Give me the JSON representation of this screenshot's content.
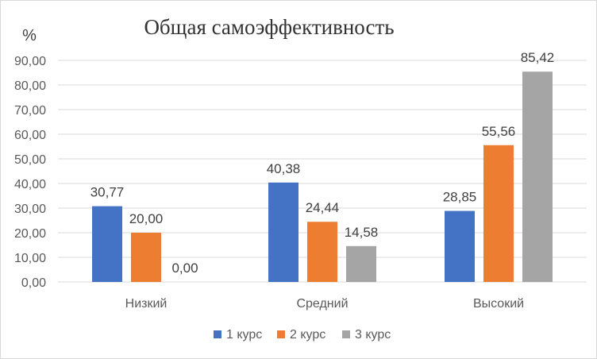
{
  "chart_data": {
    "type": "bar",
    "title": "Общая  самоэффективность",
    "ylabel": "%",
    "xlabel": "",
    "categories": [
      "Низкий",
      "Средний",
      "Высокий"
    ],
    "series": [
      {
        "name": "1 курс",
        "values": [
          30.77,
          40.38,
          28.85
        ],
        "color": "#4472c4"
      },
      {
        "name": "2 курс",
        "values": [
          20.0,
          24.44,
          55.56
        ],
        "color": "#ed7d31"
      },
      {
        "name": "3 курс",
        "values": [
          0.0,
          14.58,
          85.42
        ],
        "color": "#a5a5a5"
      }
    ],
    "ylim": [
      0,
      90
    ],
    "yticks": [
      0,
      10,
      20,
      30,
      40,
      50,
      60,
      70,
      80,
      90
    ],
    "ytick_labels": [
      "0,00",
      "10,00",
      "20,00",
      "30,00",
      "40,00",
      "50,00",
      "60,00",
      "70,00",
      "80,00",
      "90,00"
    ],
    "data_labels": [
      [
        "30,77",
        "40,38",
        "28,85"
      ],
      [
        "20,00",
        "24,44",
        "55,56"
      ],
      [
        "0,00",
        "14,58",
        "85,42"
      ]
    ],
    "grid": true,
    "legend_position": "bottom",
    "grid_color": "#d9d9d9"
  }
}
